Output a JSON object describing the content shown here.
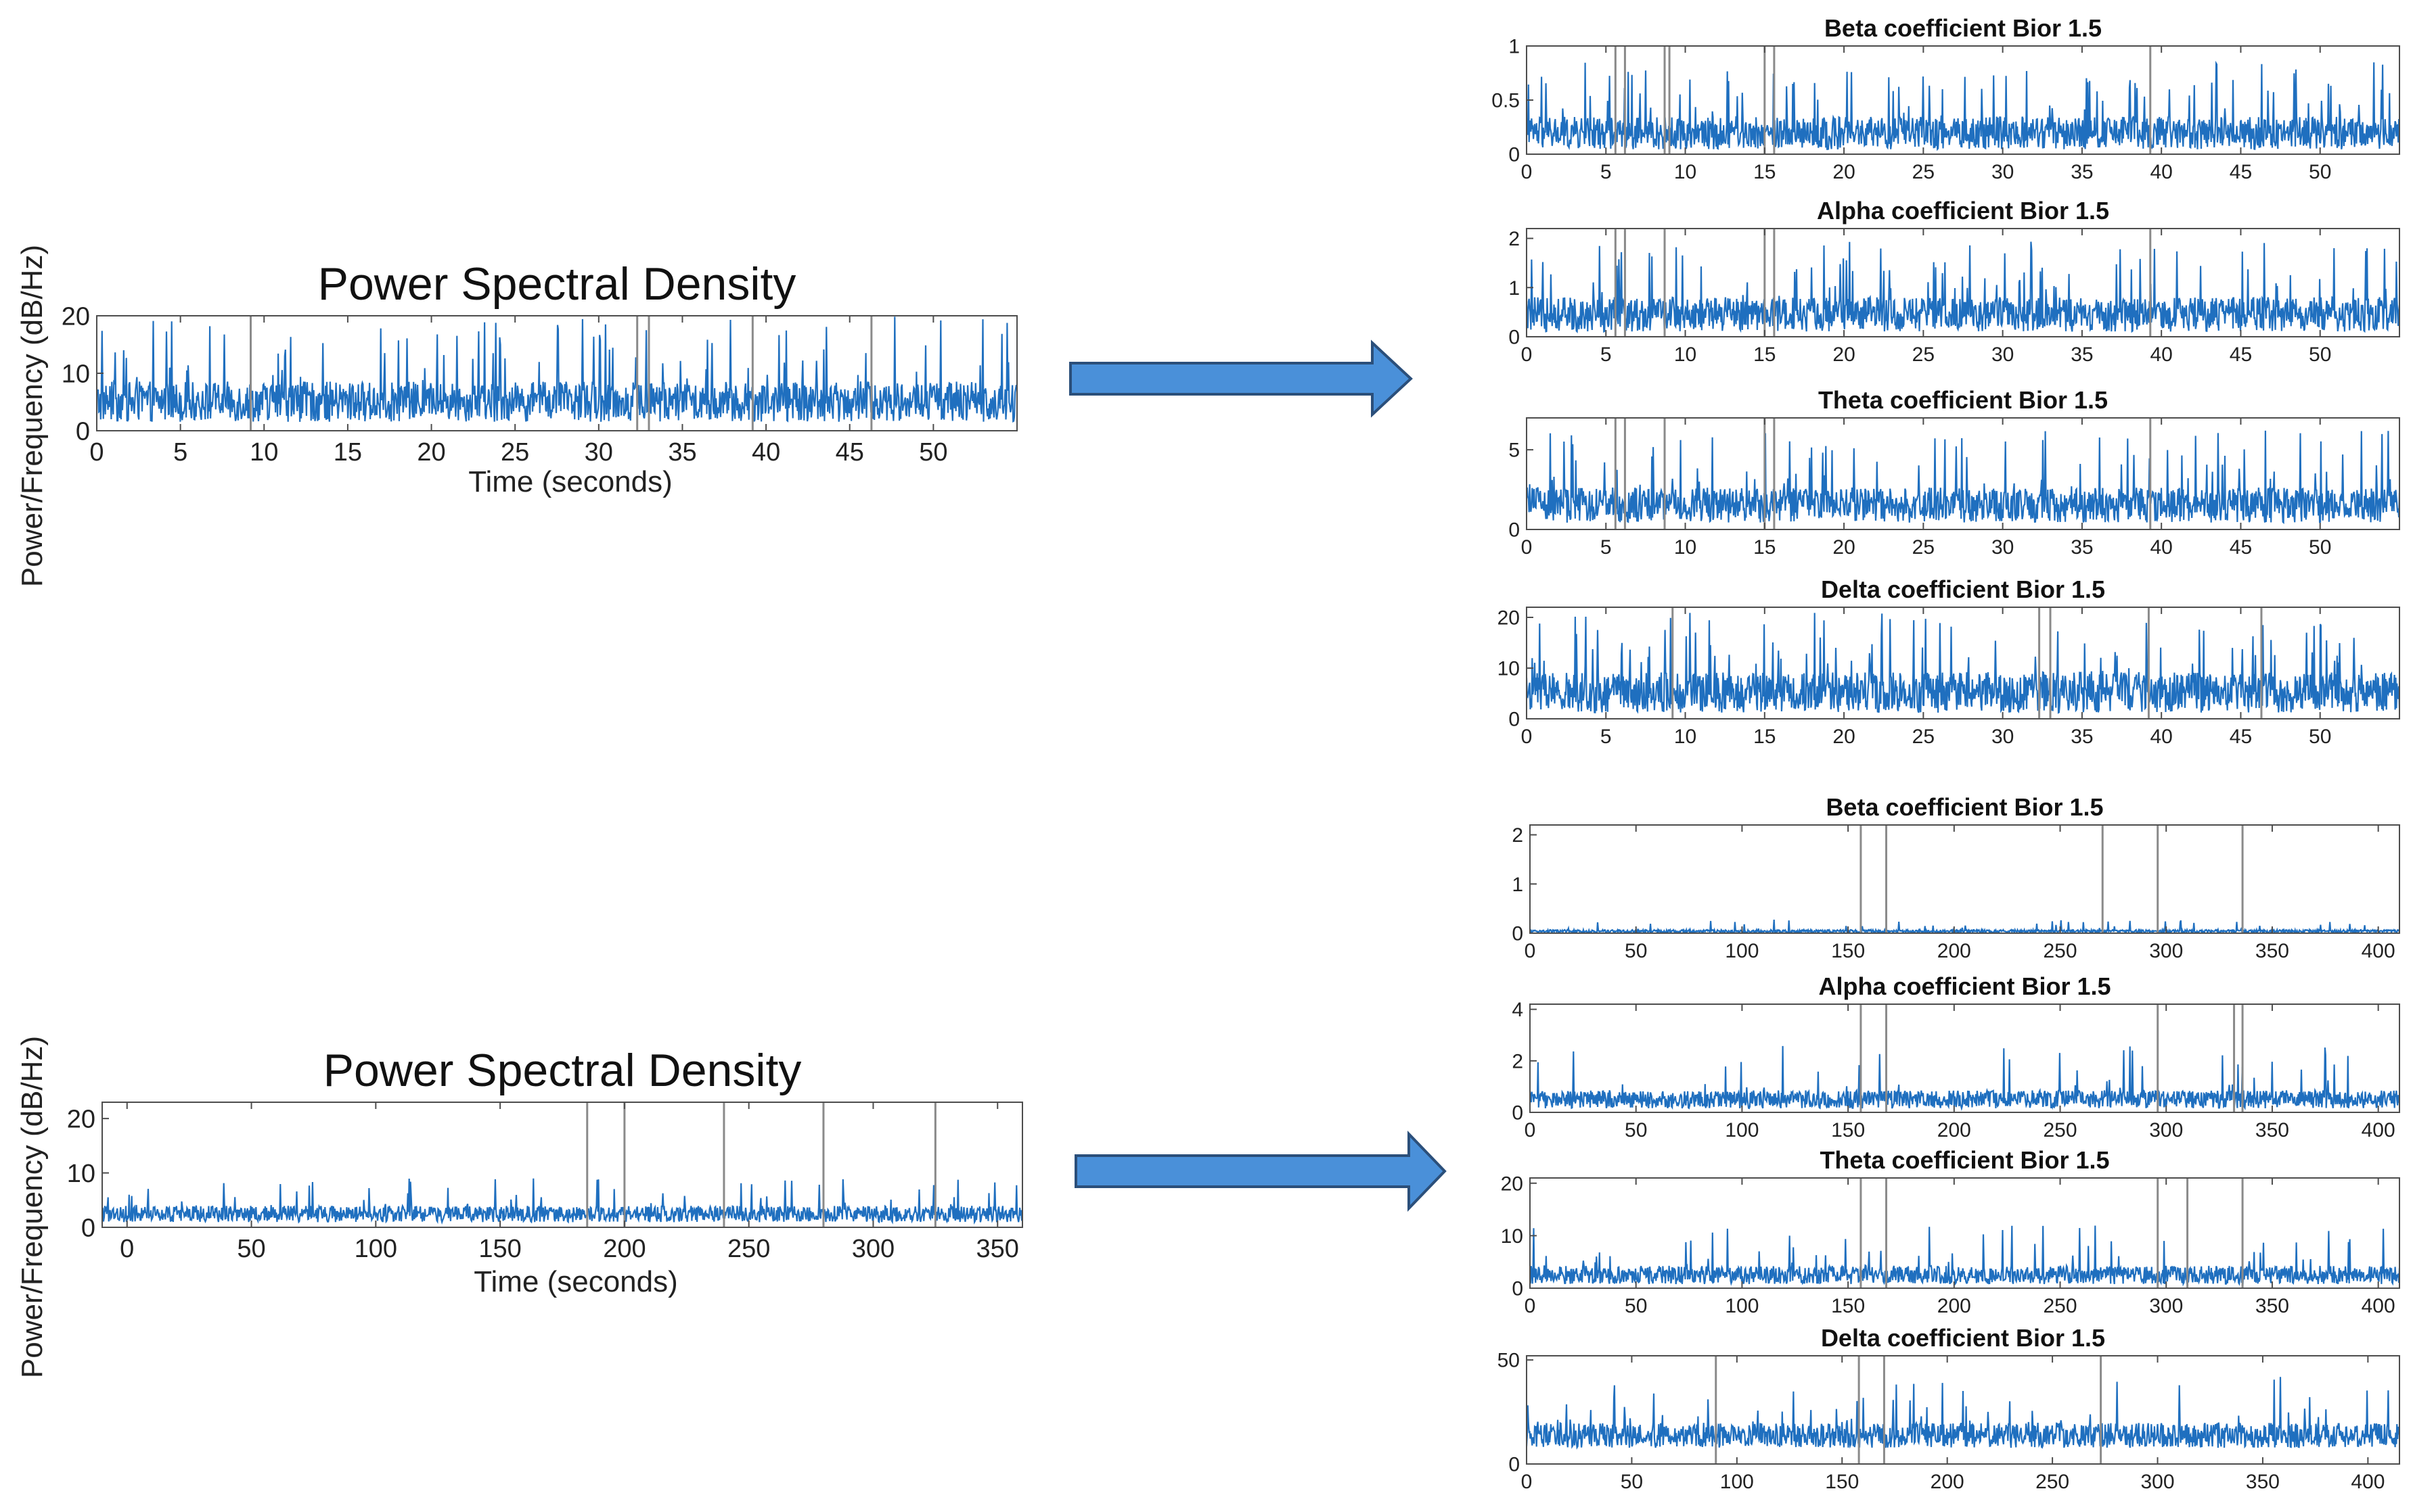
{
  "left_ylabel": "Power/Frequency (dB/Hz)",
  "chart_data": [
    {
      "id": "psd_top",
      "type": "line",
      "title": "Power Spectral Density",
      "xlabel": "Time (seconds)",
      "ylabel": "Power/Frequency (dB/Hz)",
      "xlim": [
        0,
        55
      ],
      "ylim": [
        0,
        20
      ],
      "xticks": [
        0,
        5,
        10,
        15,
        20,
        25,
        30,
        35,
        40,
        45,
        50
      ],
      "yticks": [
        0,
        10,
        20
      ],
      "vlines": [
        9.2,
        32.3,
        33,
        39.2,
        46.3
      ],
      "series": [
        {
          "base": 4,
          "amp": 7,
          "spike_every": 11,
          "spike": 16
        }
      ]
    },
    {
      "id": "beta_top",
      "type": "line",
      "title": "Beta coefficient Bior 1.5",
      "xlim": [
        0,
        55
      ],
      "ylim": [
        0,
        1
      ],
      "xticks": [
        0,
        5,
        10,
        15,
        20,
        25,
        30,
        35,
        40,
        45,
        50
      ],
      "yticks": [
        0,
        0.5,
        1
      ],
      "vlines": [
        5.6,
        6.2,
        8.7,
        9.0,
        15,
        15.6,
        39.3
      ],
      "series": [
        {
          "base": 0.15,
          "amp": 0.3,
          "spike_every": 13,
          "spike": 0.7
        }
      ]
    },
    {
      "id": "alpha_top",
      "type": "line",
      "title": "Alpha coefficient Bior 1.5",
      "xlim": [
        0,
        55
      ],
      "ylim": [
        0,
        2.2
      ],
      "xticks": [
        0,
        5,
        10,
        15,
        20,
        25,
        30,
        35,
        40,
        45,
        50
      ],
      "yticks": [
        0,
        1,
        2
      ],
      "vlines": [
        5.6,
        6.2,
        8.7,
        15,
        15.6,
        39.3
      ],
      "series": [
        {
          "base": 0.35,
          "amp": 0.7,
          "spike_every": 13,
          "spike": 1.6
        }
      ]
    },
    {
      "id": "theta_top",
      "type": "line",
      "title": "Theta coefficient Bior 1.5",
      "xlim": [
        0,
        55
      ],
      "ylim": [
        0,
        7
      ],
      "xticks": [
        0,
        5,
        10,
        15,
        20,
        25,
        30,
        35,
        40,
        45,
        50
      ],
      "yticks": [
        0,
        5
      ],
      "vlines": [
        5.6,
        6.2,
        8.7,
        15,
        15.6,
        39.3
      ],
      "series": [
        {
          "base": 1.2,
          "amp": 2.2,
          "spike_every": 13,
          "spike": 5
        }
      ]
    },
    {
      "id": "delta_top",
      "type": "line",
      "title": "Delta coefficient Bior 1.5",
      "xlim": [
        0,
        55
      ],
      "ylim": [
        0,
        22
      ],
      "xticks": [
        0,
        5,
        10,
        15,
        20,
        25,
        30,
        35,
        40,
        45,
        50
      ],
      "yticks": [
        0,
        10,
        20
      ],
      "vlines": [
        9.2,
        32.3,
        33,
        39.2,
        46.3
      ],
      "series": [
        {
          "base": 4,
          "amp": 8,
          "spike_every": 11,
          "spike": 17
        }
      ]
    },
    {
      "id": "psd_bottom",
      "type": "line",
      "title": "Power Spectral Density",
      "xlabel": "Time (seconds)",
      "ylabel": "Power/Frequency (dB/Hz)",
      "xlim": [
        -10,
        360
      ],
      "ylim": [
        0,
        23
      ],
      "xticks": [
        0,
        50,
        100,
        150,
        200,
        250,
        300,
        350
      ],
      "yticks": [
        0,
        10,
        20
      ],
      "vlines": [
        185,
        200,
        240,
        280,
        325
      ],
      "series": [
        {
          "base": 2,
          "amp": 3,
          "spike_every": 17,
          "spike": 7
        }
      ]
    },
    {
      "id": "beta_bottom",
      "type": "line",
      "title": "Beta coefficient Bior 1.5",
      "xlim": [
        0,
        410
      ],
      "ylim": [
        0,
        2.2
      ],
      "xticks": [
        0,
        50,
        100,
        150,
        200,
        250,
        300,
        350,
        400
      ],
      "yticks": [
        0,
        1,
        2
      ],
      "vlines": [
        156,
        168,
        270,
        296,
        336
      ],
      "series": [
        {
          "base": 0.03,
          "amp": 0.06,
          "spike_every": 29,
          "spike": 0.25
        }
      ]
    },
    {
      "id": "alpha_bottom",
      "type": "line",
      "title": "Alpha coefficient Bior 1.5",
      "xlim": [
        0,
        410
      ],
      "ylim": [
        0,
        4.2
      ],
      "xticks": [
        0,
        50,
        100,
        150,
        200,
        250,
        300,
        350,
        400
      ],
      "yticks": [
        0,
        2,
        4
      ],
      "vlines": [
        156,
        168,
        296,
        332,
        336
      ],
      "series": [
        {
          "base": 0.4,
          "amp": 0.7,
          "spike_every": 23,
          "spike": 2.2
        }
      ]
    },
    {
      "id": "theta_bottom",
      "type": "line",
      "title": "Theta coefficient Bior 1.5",
      "xlim": [
        0,
        410
      ],
      "ylim": [
        0,
        21
      ],
      "xticks": [
        0,
        50,
        100,
        150,
        200,
        250,
        300,
        350,
        400
      ],
      "yticks": [
        0,
        10,
        20
      ],
      "vlines": [
        156,
        168,
        296,
        310,
        336
      ],
      "series": [
        {
          "base": 2,
          "amp": 3.5,
          "spike_every": 23,
          "spike": 10
        }
      ]
    },
    {
      "id": "delta_bottom",
      "type": "line",
      "title": "Delta coefficient Bior 1.5",
      "xlim": [
        0,
        415
      ],
      "ylim": [
        0,
        52
      ],
      "xticks": [
        0,
        50,
        100,
        150,
        200,
        250,
        300,
        350,
        400
      ],
      "yticks": [
        0,
        50
      ],
      "vlines": [
        90,
        158,
        170,
        273
      ],
      "series": [
        {
          "base": 12,
          "amp": 12,
          "spike_every": 19,
          "spike": 30
        }
      ]
    }
  ],
  "arrow_color": "#4a90d9",
  "line_color": "#1f6fbf",
  "vline_color": "#8a8a8a"
}
